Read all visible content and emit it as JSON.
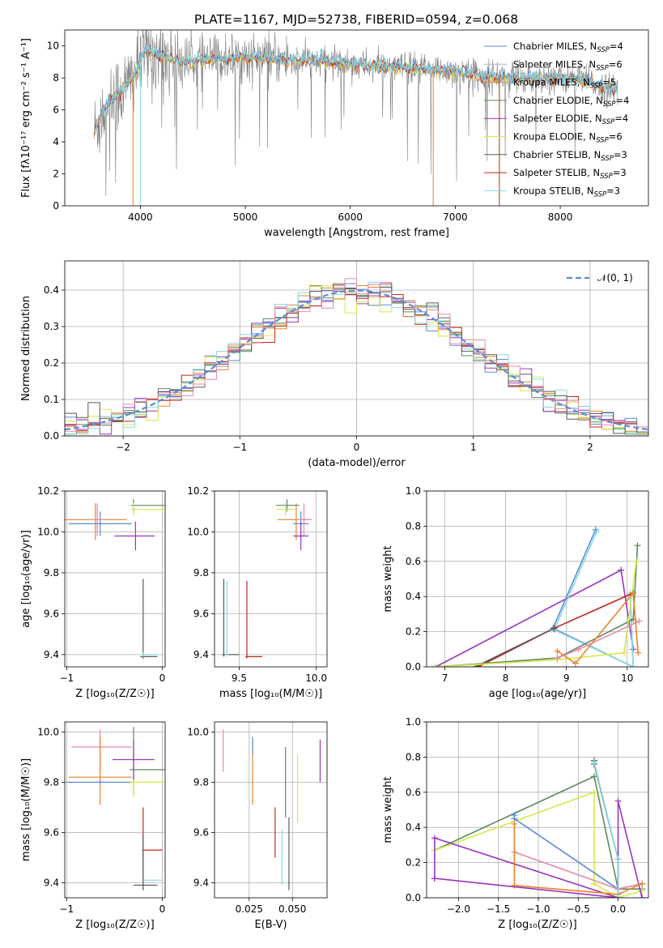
{
  "figure": {
    "title": "PLATE=1167, MJD=52738, FIBERID=0594, z=0.068"
  },
  "colors": {
    "Chabrier MILES": "#5b8bd6",
    "Salpeter MILES": "#8fbfc9",
    "Kroupa MILES": "#e8832a",
    "Chabrier ELODIE": "#5e8a5e",
    "Salpeter ELODIE": "#9a35c0",
    "Kroupa ELODIE": "#d8e84a",
    "Chabrier STELIB": "#5a5a5a",
    "Salpeter STELIB": "#c0281a",
    "Kroupa STELIB": "#86dbe3",
    "data": "#808080",
    "pink": "#e88aa8",
    "normal": "#5b8bd6"
  },
  "chart_data": [
    {
      "id": "spectrum",
      "type": "line",
      "title": "PLATE=1167, MJD=52738, FIBERID=0594, z=0.068",
      "xlabel": "wavelength [Angstrom, rest frame]",
      "ylabel": "Flux [fλ10⁻¹⁷ erg cm⁻² s⁻¹ A⁻¹]",
      "xlim": [
        3280,
        8840
      ],
      "ylim": [
        0,
        11
      ],
      "xticks": [
        4000,
        5000,
        6000,
        7000,
        8000
      ],
      "yticks": [
        0,
        2,
        4,
        6,
        8,
        10
      ],
      "grid": false,
      "legend_position": "upper right",
      "legend": [
        {
          "label": "Chabrier MILES, N",
          "sub": "SSP",
          "val": "=4",
          "color": "#5b8bd6"
        },
        {
          "label": "Salpeter MILES, N",
          "sub": "SSP",
          "val": "=6",
          "color": "#8fbfc9"
        },
        {
          "label": "Kroupa MILES, N",
          "sub": "SSP",
          "val": "=5",
          "color": "#e8832a"
        },
        {
          "label": "Chabrier ELODIE, N",
          "sub": "SSP",
          "val": "=4",
          "color": "#5e8a5e"
        },
        {
          "label": "Salpeter ELODIE, N",
          "sub": "SSP",
          "val": "=4",
          "color": "#9a35c0"
        },
        {
          "label": "Kroupa ELODIE, N",
          "sub": "SSP",
          "val": "=6",
          "color": "#d8e84a"
        },
        {
          "label": "Chabrier STELIB, N",
          "sub": "SSP",
          "val": "=3",
          "color": "#5a5a5a"
        },
        {
          "label": "Salpeter STELIB, N",
          "sub": "SSP",
          "val": "=3",
          "color": "#c0281a"
        },
        {
          "label": "Kroupa STELIB, N",
          "sub": "SSP",
          "val": "=3",
          "color": "#86dbe3"
        }
      ],
      "continuum": {
        "x": [
          3560,
          3650,
          3750,
          3850,
          3950,
          4050,
          4200,
          4400,
          4600,
          4800,
          5000,
          5200,
          5400,
          5600,
          5800,
          6000,
          6200,
          6400,
          6600,
          6800,
          7000,
          7200,
          7400,
          7600,
          7800,
          8000,
          8200,
          8400,
          8600
        ],
        "y": [
          4.6,
          6.0,
          6.8,
          7.3,
          8.3,
          9.7,
          9.4,
          9.0,
          9.1,
          9.2,
          9.3,
          9.2,
          9.15,
          9.1,
          9.0,
          8.9,
          8.7,
          8.7,
          8.6,
          8.5,
          8.4,
          8.2,
          8.1,
          8.0,
          8.0,
          8.0,
          7.9,
          7.4,
          7.2
        ]
      },
      "data_range": [
        3560,
        8550
      ]
    },
    {
      "id": "residuals",
      "type": "step",
      "xlabel": "(data-model)/error",
      "ylabel": "Normed distribution",
      "xlim": [
        -2.5,
        2.5
      ],
      "ylim": [
        0,
        0.48
      ],
      "xticks": [
        -2,
        -1,
        0,
        1,
        2
      ],
      "xtick_labels": [
        "−2",
        "−1",
        "0",
        "1",
        "2"
      ],
      "yticks": [
        0.0,
        0.1,
        0.2,
        0.3,
        0.4
      ],
      "ytick_labels": [
        "0.0",
        "0.1",
        "0.2",
        "0.3",
        "0.4"
      ],
      "grid": true,
      "bin_width": 0.1,
      "legend": [
        {
          "label": "𝒩(0, 1)",
          "style": "dashed",
          "color": "#5b8bd6"
        }
      ],
      "legend_position": "upper right"
    },
    {
      "id": "age-vs-Z",
      "type": "errorbar",
      "xlabel": "Z [log₁₀(Z/Z☉)]",
      "ylabel": "age  [log₁₀(age/yr)]",
      "xlim": [
        -1.02,
        0.03
      ],
      "ylim": [
        9.34,
        10.2
      ],
      "xticks": [
        -1,
        0
      ],
      "xtick_labels": [
        "−1",
        "0"
      ],
      "yticks": [
        9.4,
        9.6,
        9.8,
        10.0,
        10.2
      ],
      "ytick_labels": [
        "9.4",
        "9.6",
        "9.8",
        "10.0",
        "10.2"
      ],
      "grid": true,
      "points": [
        {
          "x": -0.7,
          "y": 10.06,
          "xe": [
            0.33,
            0.33
          ],
          "ye": [
            0.1,
            0.08
          ],
          "c": "#e8832a"
        },
        {
          "x": -0.65,
          "y": 10.04,
          "xe": [
            0.33,
            0.33
          ],
          "ye": [
            0.06,
            0.06
          ],
          "c": "#5b8bd6"
        },
        {
          "x": -0.68,
          "y": 10.06,
          "xe": [
            0.1,
            0.1
          ],
          "ye": [
            0.08,
            0.08
          ],
          "c": "#e88aa8"
        },
        {
          "x": -0.3,
          "y": 10.13,
          "xe": [
            0.03,
            0.33
          ],
          "ye": [
            0.03,
            0.03
          ],
          "c": "#5e8a5e"
        },
        {
          "x": -0.3,
          "y": 10.11,
          "xe": [
            0.03,
            0.33
          ],
          "ye": [
            0.03,
            0.03
          ],
          "c": "#d8e84a"
        },
        {
          "x": -0.28,
          "y": 9.98,
          "xe": [
            0.22,
            0.2
          ],
          "ye": [
            0.07,
            0.07
          ],
          "c": "#9a35c0"
        },
        {
          "x": -0.2,
          "y": 9.39,
          "xe": [
            0.03,
            0.15
          ],
          "ye": [
            0.01,
            0.38
          ],
          "c": "#5a5a5a"
        },
        {
          "x": -0.2,
          "y": 9.4,
          "xe": [
            0.01,
            0.15
          ],
          "ye": [
            0.01,
            0.01
          ],
          "c": "#86dbe3"
        }
      ]
    },
    {
      "id": "age-vs-mass",
      "type": "errorbar",
      "xlabel": "mass [log₁₀(M/M☉)]",
      "xlim": [
        9.34,
        10.07
      ],
      "ylim": [
        9.34,
        10.2
      ],
      "xticks": [
        9.5,
        10.0
      ],
      "xtick_labels": [
        "9.5",
        "10.0"
      ],
      "yticks": [
        9.4,
        9.6,
        9.8,
        10.0,
        10.2
      ],
      "ytick_labels": [
        "9.4",
        "9.6",
        "9.8",
        "10.0",
        "10.2"
      ],
      "grid": true,
      "points": [
        {
          "x": 9.87,
          "y": 10.06,
          "xe": [
            0.12,
            0.1
          ],
          "ye": [
            0.1,
            0.08
          ],
          "c": "#e8832a"
        },
        {
          "x": 9.9,
          "y": 10.04,
          "xe": [
            0.05,
            0.05
          ],
          "ye": [
            0.06,
            0.06
          ],
          "c": "#5b8bd6"
        },
        {
          "x": 9.92,
          "y": 10.06,
          "xe": [
            0.05,
            0.05
          ],
          "ye": [
            0.08,
            0.08
          ],
          "c": "#e88aa8"
        },
        {
          "x": 9.81,
          "y": 10.13,
          "xe": [
            0.07,
            0.08
          ],
          "ye": [
            0.03,
            0.03
          ],
          "c": "#5e8a5e"
        },
        {
          "x": 9.8,
          "y": 10.11,
          "xe": [
            0.06,
            0.06
          ],
          "ye": [
            0.03,
            0.03
          ],
          "c": "#d8e84a"
        },
        {
          "x": 9.9,
          "y": 9.98,
          "xe": [
            0.05,
            0.05
          ],
          "ye": [
            0.07,
            0.07
          ],
          "c": "#9a35c0"
        },
        {
          "x": 9.55,
          "y": 9.39,
          "xe": [
            0.01,
            0.1
          ],
          "ye": [
            0.01,
            0.37
          ],
          "c": "#c0281a"
        },
        {
          "x": 9.4,
          "y": 9.4,
          "xe": [
            0.01,
            0.1
          ],
          "ye": [
            0.01,
            0.37
          ],
          "c": "#5a5a5a"
        },
        {
          "x": 9.42,
          "y": 9.4,
          "xe": [
            0.01,
            0.01
          ],
          "ye": [
            0.01,
            0.36
          ],
          "c": "#86dbe3"
        }
      ]
    },
    {
      "id": "mw-vs-age",
      "type": "line",
      "xlabel": "age  [log₁₀(age/yr)]",
      "ylabel": "mass weight",
      "xlim": [
        6.7,
        10.35
      ],
      "ylim": [
        0,
        1
      ],
      "xticks": [
        7,
        8,
        9,
        10
      ],
      "xtick_labels": [
        "7",
        "8",
        "9",
        "10"
      ],
      "yticks": [
        0.0,
        0.2,
        0.4,
        0.6,
        0.8,
        1.0
      ],
      "ytick_labels": [
        "0.0",
        "0.2",
        "0.4",
        "0.6",
        "0.8",
        "1.0"
      ],
      "grid": true,
      "series": [
        {
          "c": "#9a35c0",
          "x": [
            6.85,
            9.9,
            10.1
          ],
          "y": [
            0.0,
            0.55,
            0.1
          ]
        },
        {
          "c": "#5b8bd6",
          "x": [
            9.48,
            8.78,
            10.1,
            10.05
          ],
          "y": [
            0.78,
            0.22,
            0.0,
            0.41
          ]
        },
        {
          "c": "#86dbe3",
          "x": [
            9.5,
            8.8,
            10.1,
            10.05
          ],
          "y": [
            0.77,
            0.21,
            0.0,
            0.42
          ]
        },
        {
          "c": "#c0281a",
          "x": [
            7.55,
            8.8,
            10.1
          ],
          "y": [
            0.0,
            0.22,
            0.42
          ]
        },
        {
          "c": "#5a5a5a",
          "x": [
            7.5,
            8.8
          ],
          "y": [
            0.0,
            0.22
          ]
        },
        {
          "c": "#5e8a5e",
          "x": [
            6.85,
            8.85,
            10.1,
            10.17
          ],
          "y": [
            0.0,
            0.05,
            0.27,
            0.69
          ]
        },
        {
          "c": "#d8e84a",
          "x": [
            6.85,
            8.85,
            9.95,
            10.15
          ],
          "y": [
            0.0,
            0.04,
            0.08,
            0.6
          ]
        },
        {
          "c": "#e88aa8",
          "x": [
            8.85,
            9.2,
            10.2
          ],
          "y": [
            0.05,
            0.1,
            0.26
          ]
        },
        {
          "c": "#e8832a",
          "x": [
            8.85,
            9.15,
            10.1,
            10.18
          ],
          "y": [
            0.09,
            0.02,
            0.42,
            0.08
          ]
        }
      ]
    },
    {
      "id": "mass-vs-Z",
      "type": "errorbar",
      "xlabel": "Z [log₁₀(Z/Z☉)]",
      "ylabel": "mass [log₁₀(M/M☉)]",
      "xlim": [
        -1.02,
        0.03
      ],
      "ylim": [
        9.34,
        10.04
      ],
      "xticks": [
        -1,
        0
      ],
      "xtick_labels": [
        "−1",
        "0"
      ],
      "yticks": [
        9.4,
        9.6,
        9.8,
        10.0
      ],
      "ytick_labels": [
        "9.4",
        "9.6",
        "9.8",
        "10.0"
      ],
      "grid": true,
      "points": [
        {
          "x": -0.65,
          "y": 9.94,
          "xe": [
            0.3,
            0.33
          ],
          "ye": [
            0.1,
            0.07
          ],
          "c": "#e88aa8"
        },
        {
          "x": -0.65,
          "y": 9.82,
          "xe": [
            0.33,
            0.33
          ],
          "ye": [
            0.11,
            0.16
          ],
          "c": "#e8832a"
        },
        {
          "x": -0.65,
          "y": 9.8,
          "xe": [
            0.35,
            0.35
          ],
          "ye": [
            0.01,
            0.01
          ],
          "c": "#5b8bd6"
        },
        {
          "x": -0.3,
          "y": 9.85,
          "xe": [
            0.04,
            0.35
          ],
          "ye": [
            0.1,
            0.17
          ],
          "c": "#5e8a5e"
        },
        {
          "x": -0.3,
          "y": 9.8,
          "xe": [
            0.04,
            0.32
          ],
          "ye": [
            0.06,
            0.11
          ],
          "c": "#d8e84a"
        },
        {
          "x": -0.3,
          "y": 9.89,
          "xe": [
            0.22,
            0.22
          ],
          "ye": [
            0.08,
            0.08
          ],
          "c": "#9a35c0"
        },
        {
          "x": -0.2,
          "y": 9.53,
          "xe": [
            0.01,
            0.2
          ],
          "ye": [
            0.1,
            0.17
          ],
          "c": "#c0281a"
        },
        {
          "x": -0.2,
          "y": 9.41,
          "xe": [
            0.01,
            0.2
          ],
          "ye": [
            0.04,
            0.18
          ],
          "c": "#86dbe3"
        },
        {
          "x": -0.2,
          "y": 9.39,
          "xe": [
            0.1,
            0.15
          ],
          "ye": [
            0.02,
            0.2
          ],
          "c": "#5a5a5a"
        }
      ]
    },
    {
      "id": "mass-vs-EBV",
      "type": "errorbar",
      "xlabel": "E(B-V)",
      "xlim": [
        0.005,
        0.07
      ],
      "ylim": [
        9.34,
        10.04
      ],
      "xticks": [
        0.025,
        0.05
      ],
      "xtick_labels": [
        "0.025",
        "0.050"
      ],
      "yticks": [
        9.4,
        9.6,
        9.8,
        10.0
      ],
      "ytick_labels": [
        "9.4",
        "9.6",
        "9.8",
        "10.0"
      ],
      "grid": true,
      "points": [
        {
          "x": 0.01,
          "y": 9.93,
          "xe": [
            0.0,
            0.0
          ],
          "ye": [
            0.09,
            0.08
          ],
          "c": "#e88aa8"
        },
        {
          "x": 0.027,
          "y": 9.85,
          "xe": [
            0.0,
            0.0
          ],
          "ye": [
            0.14,
            0.13
          ],
          "c": "#e8832a"
        },
        {
          "x": 0.027,
          "y": 9.94,
          "xe": [
            0.0,
            0.0
          ],
          "ye": [
            0.03,
            0.04
          ],
          "c": "#5b8bd6"
        },
        {
          "x": 0.04,
          "y": 9.6,
          "xe": [
            0.0,
            0.0
          ],
          "ye": [
            0.1,
            0.1
          ],
          "c": "#c0281a"
        },
        {
          "x": 0.046,
          "y": 9.8,
          "xe": [
            0.0,
            0.0
          ],
          "ye": [
            0.14,
            0.14
          ],
          "c": "#5e8a5e"
        },
        {
          "x": 0.044,
          "y": 9.5,
          "xe": [
            0.0,
            0.0
          ],
          "ye": [
            0.11,
            0.11
          ],
          "c": "#86dbe3"
        },
        {
          "x": 0.048,
          "y": 9.5,
          "xe": [
            0.0,
            0.0
          ],
          "ye": [
            0.13,
            0.16
          ],
          "c": "#5a5a5a"
        },
        {
          "x": 0.053,
          "y": 9.77,
          "xe": [
            0.0,
            0.0
          ],
          "ye": [
            0.13,
            0.14
          ],
          "c": "#d8e84a"
        },
        {
          "x": 0.066,
          "y": 9.88,
          "xe": [
            0.0,
            0.0
          ],
          "ye": [
            0.08,
            0.09
          ],
          "c": "#9a35c0"
        }
      ]
    },
    {
      "id": "mw-vs-Z",
      "type": "line",
      "xlabel": "Z [log₁₀(Z/Z☉)]",
      "ylabel": "mass weight",
      "xlim": [
        -2.4,
        0.38
      ],
      "ylim": [
        0,
        1
      ],
      "xticks": [
        -2.0,
        -1.5,
        -1.0,
        -0.5,
        0.0
      ],
      "xtick_labels": [
        "−2.0",
        "−1.5",
        "−1.0",
        "−0.5",
        "0.0"
      ],
      "yticks": [
        0.0,
        0.2,
        0.4,
        0.6,
        0.8,
        1.0
      ],
      "ytick_labels": [
        "0.0",
        "0.2",
        "0.4",
        "0.6",
        "0.8",
        "1.0"
      ],
      "grid": true,
      "series": [
        {
          "c": "#5e8a5e",
          "x": [
            -2.3,
            -0.3,
            0.0,
            0.3
          ],
          "y": [
            0.27,
            0.69,
            0.05,
            0.05
          ]
        },
        {
          "c": "#d8e84a",
          "x": [
            -2.3,
            -0.3,
            -0.3,
            0.0,
            0.3
          ],
          "y": [
            0.27,
            0.6,
            0.08,
            0.0,
            0.04
          ]
        },
        {
          "c": "#5b8bd6",
          "x": [
            -1.3,
            -1.3,
            0.0,
            0.3
          ],
          "y": [
            0.47,
            0.45,
            0.05,
            0.08
          ]
        },
        {
          "c": "#9a35c0",
          "x": [
            -2.3,
            -2.3,
            0.0,
            0.0,
            0.3
          ],
          "y": [
            0.11,
            0.34,
            0.0,
            0.55,
            0.0
          ]
        },
        {
          "c": "#e88aa8",
          "x": [
            -1.3,
            0.0,
            0.3
          ],
          "y": [
            0.26,
            0.05,
            0.08
          ]
        },
        {
          "c": "#e8832a",
          "x": [
            -1.3,
            -1.3,
            0.0,
            0.3
          ],
          "y": [
            0.42,
            0.07,
            0.02,
            0.08
          ]
        },
        {
          "c": "#9a35c0",
          "x": [
            -2.3,
            0.0
          ],
          "y": [
            0.11,
            0.0
          ]
        },
        {
          "c": "#5a5a5a",
          "x": [
            -0.3,
            -0.3,
            0.0,
            0.0
          ],
          "y": [
            0.78,
            0.76,
            0.22,
            0.0
          ]
        },
        {
          "c": "#86dbe3",
          "x": [
            -0.3,
            0.0,
            0.0
          ],
          "y": [
            0.77,
            0.22,
            0.0
          ]
        }
      ]
    }
  ]
}
